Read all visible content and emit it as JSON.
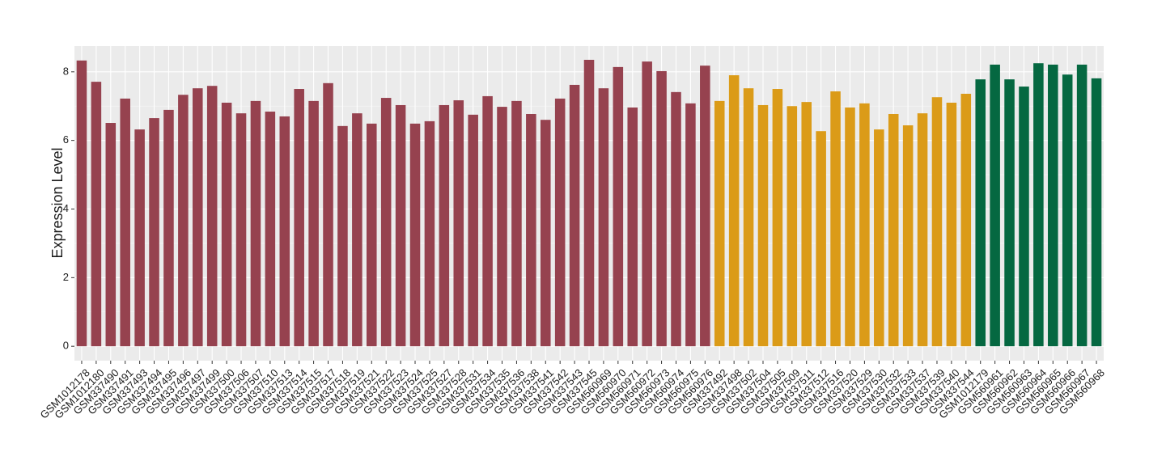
{
  "chart_data": {
    "type": "bar",
    "y_label": "Expression Level",
    "categories": [
      "GSM1012178",
      "GSM1012180",
      "GSM337490",
      "GSM337491",
      "GSM337493",
      "GSM337494",
      "GSM337495",
      "GSM337496",
      "GSM337497",
      "GSM337499",
      "GSM337500",
      "GSM337506",
      "GSM337507",
      "GSM337510",
      "GSM337513",
      "GSM337514",
      "GSM337515",
      "GSM337517",
      "GSM337518",
      "GSM337519",
      "GSM337521",
      "GSM337522",
      "GSM337523",
      "GSM337524",
      "GSM337525",
      "GSM337527",
      "GSM337528",
      "GSM337531",
      "GSM337534",
      "GSM337535",
      "GSM337536",
      "GSM337538",
      "GSM337541",
      "GSM337542",
      "GSM337543",
      "GSM337545",
      "GSM560969",
      "GSM560970",
      "GSM560971",
      "GSM560972",
      "GSM560973",
      "GSM560974",
      "GSM560975",
      "GSM560976",
      "GSM337492",
      "GSM337498",
      "GSM337502",
      "GSM337504",
      "GSM337505",
      "GSM337509",
      "GSM337511",
      "GSM337512",
      "GSM337516",
      "GSM337520",
      "GSM337529",
      "GSM337530",
      "GSM337532",
      "GSM337533",
      "GSM337537",
      "GSM337539",
      "GSM337540",
      "GSM337544",
      "GSM1012179",
      "GSM560961",
      "GSM560962",
      "GSM560963",
      "GSM560964",
      "GSM560965",
      "GSM560966",
      "GSM560967",
      "GSM560968"
    ],
    "values": [
      8.33,
      7.71,
      6.51,
      7.22,
      6.32,
      6.65,
      6.89,
      7.33,
      7.52,
      7.59,
      7.1,
      6.79,
      7.15,
      6.84,
      6.7,
      7.5,
      7.15,
      7.67,
      6.42,
      6.79,
      6.49,
      7.24,
      7.03,
      6.49,
      6.56,
      7.03,
      7.17,
      6.75,
      7.29,
      6.98,
      7.15,
      6.77,
      6.6,
      7.22,
      7.62,
      8.35,
      7.52,
      8.14,
      6.96,
      8.3,
      8.02,
      7.41,
      7.08,
      8.18,
      7.15,
      7.9,
      7.52,
      7.03,
      7.5,
      7.0,
      7.12,
      6.27,
      7.43,
      6.96,
      7.08,
      6.32,
      6.77,
      6.44,
      6.79,
      7.26,
      7.1,
      7.36,
      7.78,
      8.21,
      7.78,
      7.57,
      8.25,
      8.21,
      7.92,
      8.21,
      7.81
    ],
    "colors": [
      "#96424f",
      "#96424f",
      "#96424f",
      "#96424f",
      "#96424f",
      "#96424f",
      "#96424f",
      "#96424f",
      "#96424f",
      "#96424f",
      "#96424f",
      "#96424f",
      "#96424f",
      "#96424f",
      "#96424f",
      "#96424f",
      "#96424f",
      "#96424f",
      "#96424f",
      "#96424f",
      "#96424f",
      "#96424f",
      "#96424f",
      "#96424f",
      "#96424f",
      "#96424f",
      "#96424f",
      "#96424f",
      "#96424f",
      "#96424f",
      "#96424f",
      "#96424f",
      "#96424f",
      "#96424f",
      "#96424f",
      "#96424f",
      "#96424f",
      "#96424f",
      "#96424f",
      "#96424f",
      "#96424f",
      "#96424f",
      "#96424f",
      "#96424f",
      "#db9b18",
      "#db9b18",
      "#db9b18",
      "#db9b18",
      "#db9b18",
      "#db9b18",
      "#db9b18",
      "#db9b18",
      "#db9b18",
      "#db9b18",
      "#db9b18",
      "#db9b18",
      "#db9b18",
      "#db9b18",
      "#db9b18",
      "#db9b18",
      "#db9b18",
      "#db9b18",
      "#056841",
      "#056841",
      "#056841",
      "#056841",
      "#056841",
      "#056841",
      "#056841",
      "#056841",
      "#056841"
    ],
    "ylim": [
      -0.42,
      8.75
    ],
    "yticks": [
      0,
      2,
      4,
      6,
      8
    ],
    "grid": true,
    "panel_color": "#ebebeb"
  }
}
